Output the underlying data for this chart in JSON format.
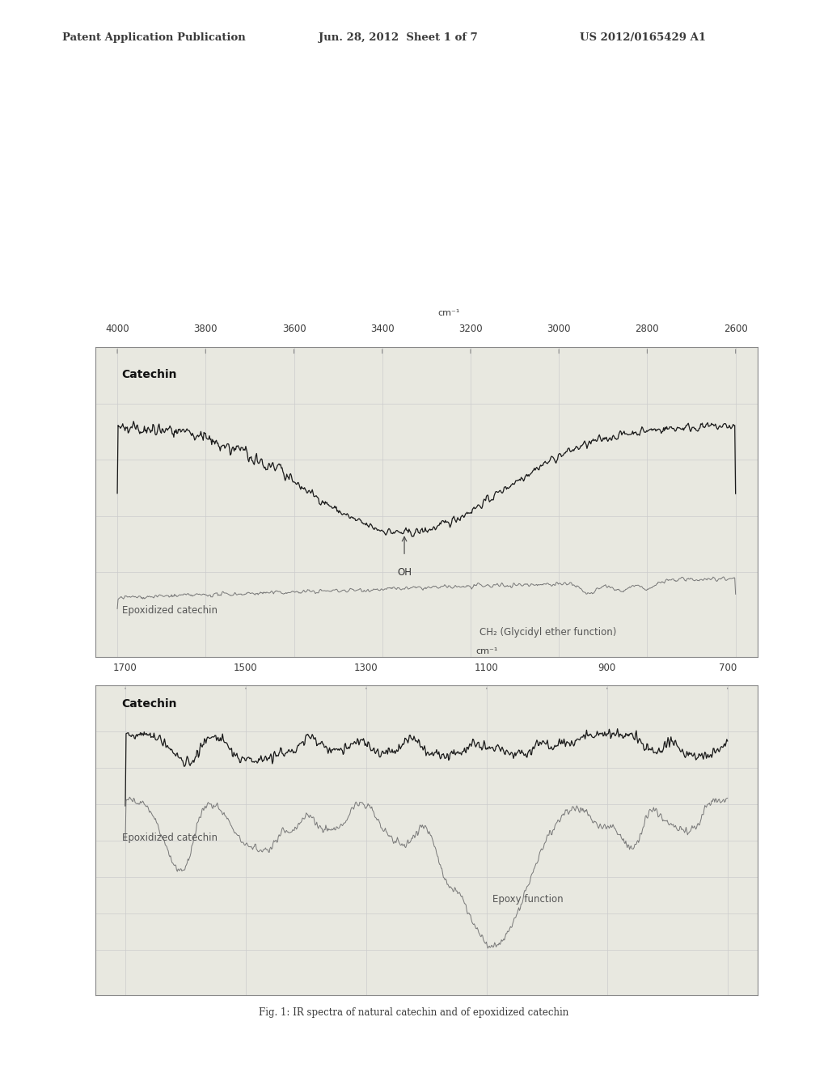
{
  "bg_color": "#e8e8e0",
  "page_bg": "#ffffff",
  "header_text": "Patent Application Publication",
  "header_date": "Jun. 28, 2012  Sheet 1 of 7",
  "header_patent": "US 2012/0165429 A1",
  "caption": "Fig. 1: IR spectra of natural catechin and of epoxidized catechin",
  "plot1": {
    "x_ticks": [
      4000,
      3800,
      3600,
      3400,
      3200,
      3000,
      2800,
      2600
    ],
    "x_label": "cm⁻¹",
    "label_catechin": "Catechin",
    "label_epoxidized": "Epoxidized catechin",
    "label_ch2": "CH₂ (Glycidyl ether function)",
    "label_oh": "OH",
    "catechin_color": "#1a1a1a",
    "epoxidized_color": "#777777"
  },
  "plot2": {
    "x_ticks": [
      1700,
      1500,
      1300,
      1100,
      900,
      700
    ],
    "x_label": "cm⁻¹",
    "label_catechin": "Catechin",
    "label_epoxidized": "Epoxidized catechin",
    "label_epoxy": "Epoxy function",
    "catechin_color": "#1a1a1a",
    "epoxidized_color": "#777777"
  }
}
